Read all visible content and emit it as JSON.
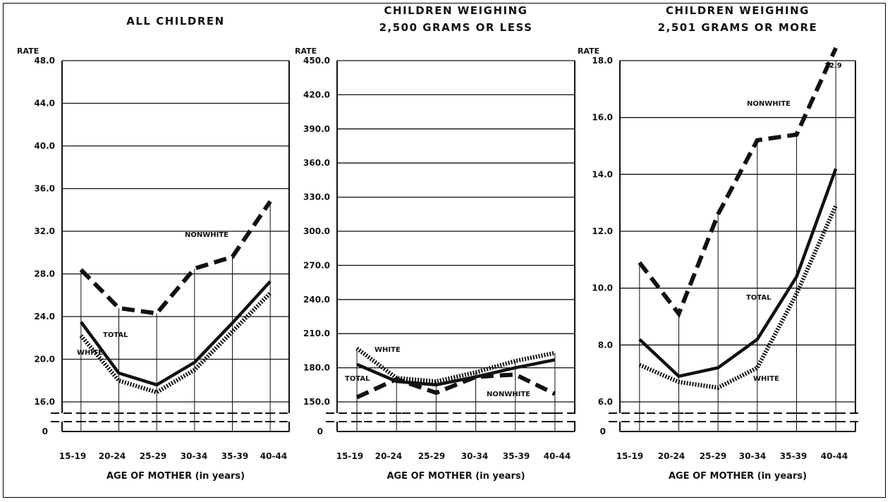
{
  "chart_data": [
    {
      "type": "line",
      "title": "ALL CHILDREN",
      "ylabel": "RATE",
      "xlabel": "AGE OF MOTHER (in years)",
      "categories": [
        "15-19",
        "20-24",
        "25-29",
        "30-34",
        "35-39",
        "40-44"
      ],
      "ylim": [
        16.0,
        48.0
      ],
      "yticks": [
        "48.0",
        "44.0",
        "40.0",
        "36.0",
        "32.0",
        "28.0",
        "24.0",
        "20.0",
        "16.0"
      ],
      "zero_label": "0",
      "series": [
        {
          "name": "NONWHITE",
          "style": "dashed",
          "values": [
            28.4,
            24.8,
            24.3,
            28.5,
            29.6,
            34.8
          ]
        },
        {
          "name": "TOTAL",
          "style": "solid",
          "values": [
            23.5,
            18.7,
            17.6,
            19.7,
            23.4,
            27.3
          ]
        },
        {
          "name": "WHITE",
          "style": "dotted",
          "values": [
            22.2,
            18.0,
            16.9,
            19.0,
            22.6,
            26.2
          ]
        }
      ]
    },
    {
      "type": "line",
      "title": "CHILDREN WEIGHING 2,500 GRAMS OR LESS",
      "ylabel": "RATE",
      "xlabel": "AGE OF MOTHER (in years)",
      "categories": [
        "15-19",
        "20-24",
        "25-29",
        "30-34",
        "35-39",
        "40-44"
      ],
      "ylim": [
        150.0,
        450.0
      ],
      "yticks": [
        "450.0",
        "420.0",
        "390.0",
        "360.0",
        "330.0",
        "300.0",
        "270.0",
        "240.0",
        "210.0",
        "180.0",
        "150.0"
      ],
      "zero_label": "0",
      "series": [
        {
          "name": "NONWHITE",
          "style": "dashed",
          "values": [
            154,
            170,
            158,
            172,
            174,
            157
          ]
        },
        {
          "name": "TOTAL",
          "style": "solid",
          "values": [
            183,
            168,
            165,
            172,
            180,
            187
          ]
        },
        {
          "name": "WHITE",
          "style": "dotted",
          "values": [
            197,
            171,
            168,
            176,
            186,
            193
          ]
        }
      ]
    },
    {
      "type": "line",
      "title": "CHILDREN WEIGHING 2,501 GRAMS OR MORE",
      "ylabel": "RATE",
      "xlabel": "AGE OF MOTHER (in years)",
      "categories": [
        "15-19",
        "20-24",
        "25-29",
        "30-34",
        "35-39",
        "40-44"
      ],
      "ylim": [
        6.0,
        18.0
      ],
      "yticks": [
        "18.0",
        "16.0",
        "14.0",
        "12.0",
        "10.0",
        "8.0",
        "6.0"
      ],
      "zero_label": "0",
      "series": [
        {
          "name": "NONWHITE",
          "style": "dashed",
          "values": [
            10.9,
            9.1,
            12.6,
            15.2,
            15.4,
            22.9
          ]
        },
        {
          "name": "TOTAL",
          "style": "solid",
          "values": [
            8.2,
            6.9,
            7.2,
            8.2,
            10.4,
            14.2
          ]
        },
        {
          "name": "WHITE",
          "style": "dotted",
          "values": [
            7.3,
            6.7,
            6.5,
            7.2,
            9.8,
            12.9
          ]
        }
      ],
      "annotations": [
        {
          "text": "22.9"
        }
      ]
    }
  ]
}
